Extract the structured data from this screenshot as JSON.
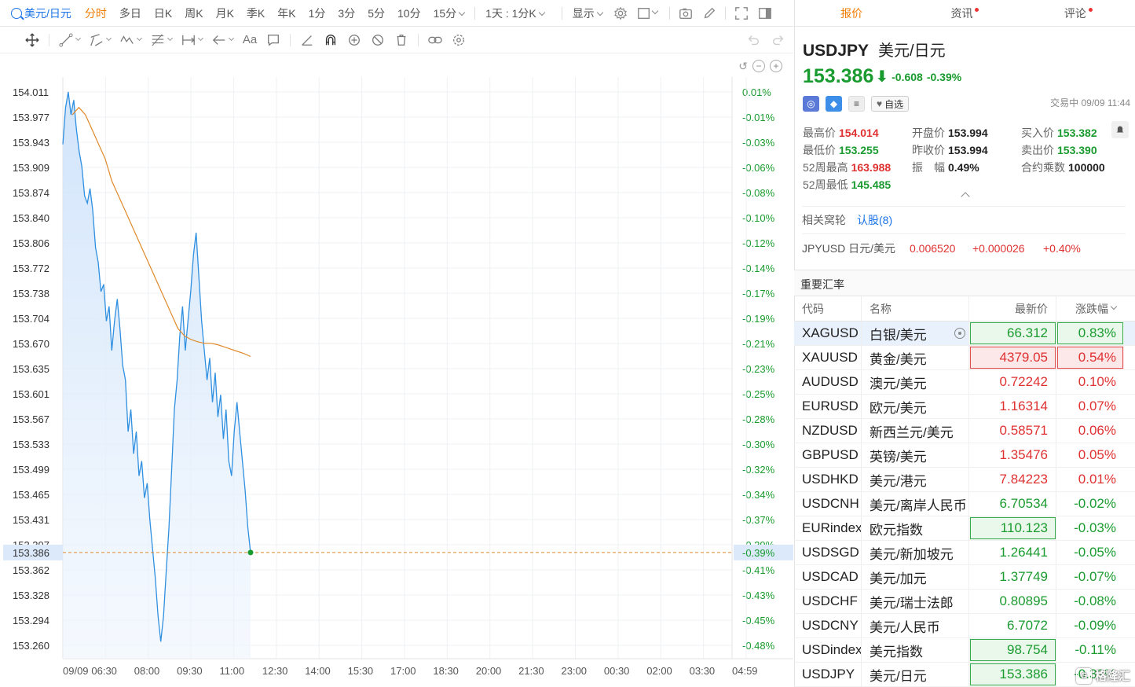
{
  "toolbar": {
    "symbol": "美元/日元",
    "periods": [
      "分时",
      "多日",
      "日K",
      "周K",
      "月K",
      "季K",
      "年K",
      "1分",
      "3分",
      "5分",
      "10分"
    ],
    "active_period": "分时",
    "more_minutes": "15分",
    "range": "1天 : 1分K",
    "display": "显示"
  },
  "panel": {
    "tabs": [
      {
        "label": "报价",
        "active": true,
        "dot": false
      },
      {
        "label": "资讯",
        "active": false,
        "dot": true
      },
      {
        "label": "评论",
        "active": false,
        "dot": true
      }
    ],
    "quote": {
      "code": "USDJPY",
      "name": "美元/日元",
      "price": "153.386",
      "change": "-0.608",
      "change_pct": "-0.39%",
      "status": "交易中 09/09 11:44",
      "favorite_label": "自选"
    },
    "stats": [
      [
        {
          "label": "最高价",
          "value": "154.014",
          "color": "red"
        },
        {
          "label": "开盘价",
          "value": "153.994",
          "color": "dark"
        },
        {
          "label": "买入价",
          "value": "153.382",
          "color": "green"
        }
      ],
      [
        {
          "label": "最低价",
          "value": "153.255",
          "color": "green"
        },
        {
          "label": "昨收价",
          "value": "153.994",
          "color": "dark"
        },
        {
          "label": "卖出价",
          "value": "153.390",
          "color": "green"
        }
      ],
      [
        {
          "label": "52周最高",
          "value": "163.988",
          "color": "red"
        },
        {
          "label": "振　幅",
          "value": "0.49%",
          "color": "dark"
        },
        {
          "label": "合约乘数",
          "value": "100000",
          "color": "dark"
        }
      ],
      [
        {
          "label": "52周最低",
          "value": "145.485",
          "color": "green"
        }
      ]
    ],
    "related": {
      "label": "相关窝轮",
      "link": "认股(8)",
      "jpy": {
        "code": "JPYUSD 日元/美元",
        "price": "0.006520",
        "change": "+0.000026",
        "pct": "+0.40%"
      }
    },
    "fx": {
      "title": "重要汇率",
      "headers": {
        "code": "代码",
        "name": "名称",
        "price": "最新价",
        "pct": "涨跌幅"
      },
      "rows": [
        {
          "code": "XAGUSD",
          "name": "白银/美元",
          "price": "66.312",
          "pct": "0.83%",
          "dir": "down",
          "box": "g",
          "selected": true
        },
        {
          "code": "XAUUSD",
          "name": "黄金/美元",
          "price": "4379.05",
          "pct": "0.54%",
          "dir": "up",
          "box": "r",
          "selected": false
        },
        {
          "code": "AUDUSD",
          "name": "澳元/美元",
          "price": "0.72242",
          "pct": "0.10%",
          "dir": "up",
          "box": "",
          "selected": false
        },
        {
          "code": "EURUSD",
          "name": "欧元/美元",
          "price": "1.16314",
          "pct": "0.07%",
          "dir": "up",
          "box": "",
          "selected": false
        },
        {
          "code": "NZDUSD",
          "name": "新西兰元/美元",
          "price": "0.58571",
          "pct": "0.06%",
          "dir": "up",
          "box": "",
          "selected": false
        },
        {
          "code": "GBPUSD",
          "name": "英镑/美元",
          "price": "1.35476",
          "pct": "0.05%",
          "dir": "up",
          "box": "",
          "selected": false
        },
        {
          "code": "USDHKD",
          "name": "美元/港元",
          "price": "7.84223",
          "pct": "0.01%",
          "dir": "up",
          "box": "",
          "selected": false
        },
        {
          "code": "USDCNH",
          "name": "美元/离岸人民币",
          "price": "6.70534",
          "pct": "-0.02%",
          "dir": "down",
          "box": "",
          "selected": false
        },
        {
          "code": "EURindex",
          "name": "欧元指数",
          "price": "110.123",
          "pct": "-0.03%",
          "dir": "down",
          "box": "gp",
          "selected": false
        },
        {
          "code": "USDSGD",
          "name": "美元/新加坡元",
          "price": "1.26441",
          "pct": "-0.05%",
          "dir": "down",
          "box": "",
          "selected": false
        },
        {
          "code": "USDCAD",
          "name": "美元/加元",
          "price": "1.37749",
          "pct": "-0.07%",
          "dir": "down",
          "box": "",
          "selected": false
        },
        {
          "code": "USDCHF",
          "name": "美元/瑞士法郎",
          "price": "0.80895",
          "pct": "-0.08%",
          "dir": "down",
          "box": "",
          "selected": false
        },
        {
          "code": "USDCNY",
          "name": "美元/人民币",
          "price": "6.7072",
          "pct": "-0.09%",
          "dir": "down",
          "box": "",
          "selected": false
        },
        {
          "code": "USDindex",
          "name": "美元指数",
          "price": "98.754",
          "pct": "-0.11%",
          "dir": "down",
          "box": "gp",
          "selected": false
        },
        {
          "code": "USDJPY",
          "name": "美元/日元",
          "price": "153.386",
          "pct": "-0.39%",
          "dir": "down",
          "box": "gp",
          "selected": false
        }
      ]
    },
    "watermark": "格隆汇"
  },
  "colors": {
    "up": "#e03131",
    "down": "#1a9b2f",
    "accent": "#f07c00",
    "line": "#2f8fe0",
    "avg": "#e08a2a"
  },
  "chart_data": {
    "type": "line",
    "y_labels": [
      "154.011",
      "153.977",
      "153.943",
      "153.909",
      "153.874",
      "153.840",
      "153.806",
      "153.772",
      "153.738",
      "153.704",
      "153.670",
      "153.635",
      "153.601",
      "153.567",
      "153.533",
      "153.499",
      "153.465",
      "153.431",
      "153.397",
      "153.362",
      "153.328",
      "153.294",
      "153.260"
    ],
    "pct_labels": [
      "0.01%",
      "-0.01%",
      "-0.03%",
      "-0.06%",
      "-0.08%",
      "-0.10%",
      "-0.12%",
      "-0.14%",
      "-0.17%",
      "-0.19%",
      "-0.21%",
      "-0.23%",
      "-0.25%",
      "-0.28%",
      "-0.30%",
      "-0.32%",
      "-0.34%",
      "-0.37%",
      "-0.39%",
      "-0.41%",
      "-0.43%",
      "-0.45%",
      "-0.48%"
    ],
    "x_labels": [
      "09/09",
      "06:30",
      "08:00",
      "09:30",
      "11:00",
      "12:30",
      "14:00",
      "15:30",
      "17:00",
      "18:30",
      "20:00",
      "21:30",
      "23:00",
      "00:30",
      "02:00",
      "03:30",
      "04:59"
    ],
    "ylim": [
      153.26,
      154.011
    ],
    "current_price": "153.386",
    "current_pct": "-0.39%",
    "price_series": [
      153.94,
      153.99,
      154.011,
      153.98,
      154.0,
      153.96,
      153.93,
      153.91,
      153.87,
      153.86,
      153.88,
      153.85,
      153.8,
      153.78,
      153.74,
      153.75,
      153.7,
      153.72,
      153.66,
      153.7,
      153.73,
      153.69,
      153.64,
      153.62,
      153.55,
      153.58,
      153.52,
      153.55,
      153.49,
      153.51,
      153.46,
      153.48,
      153.43,
      153.39,
      153.35,
      153.3,
      153.265,
      153.3,
      153.36,
      153.42,
      153.5,
      153.58,
      153.62,
      153.68,
      153.72,
      153.66,
      153.7,
      153.74,
      153.79,
      153.82,
      153.76,
      153.7,
      153.66,
      153.62,
      153.65,
      153.59,
      153.63,
      153.57,
      153.6,
      153.54,
      153.58,
      153.51,
      153.49,
      153.55,
      153.59,
      153.55,
      153.51,
      153.47,
      153.42,
      153.386
    ],
    "avg_series": [
      153.98,
      153.99,
      153.98,
      153.96,
      153.94,
      153.92,
      153.89,
      153.87,
      153.85,
      153.83,
      153.81,
      153.79,
      153.77,
      153.75,
      153.73,
      153.71,
      153.69,
      153.68,
      153.675,
      153.672,
      153.67,
      153.67,
      153.668,
      153.665,
      153.662,
      153.659,
      153.656,
      153.652
    ]
  }
}
